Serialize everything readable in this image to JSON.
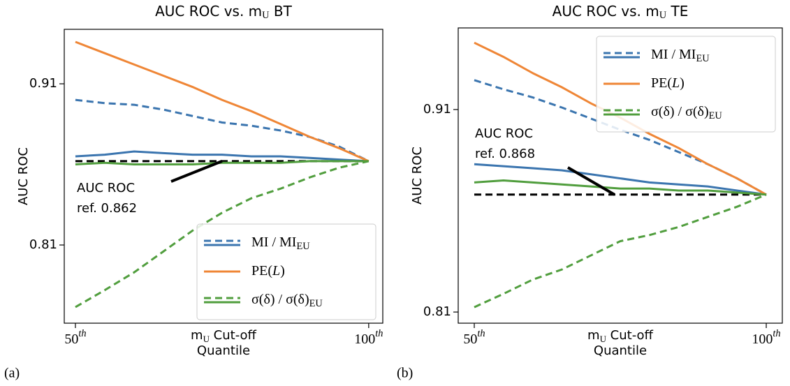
{
  "chart_data": [
    {
      "type": "line",
      "panel_label": "(a)",
      "title": [
        "AUC ROC vs. m",
        {
          "sub": "U"
        },
        " BT"
      ],
      "xlabel": [
        [
          "m",
          {
            "sub": "U"
          },
          " Cut-off"
        ],
        [
          "Quantile"
        ]
      ],
      "ylabel": "AUC ROC",
      "x": [
        50,
        55,
        60,
        65,
        70,
        75,
        80,
        85,
        90,
        95,
        100
      ],
      "xlim": [
        48.1,
        102.4
      ],
      "xticks": [
        {
          "value": 50,
          "label": [
            "50",
            {
              "sup": "th"
            }
          ]
        },
        {
          "value": 100,
          "label": [
            "100",
            {
              "sup": "th"
            }
          ]
        }
      ],
      "ylim": [
        0.7615,
        0.9438
      ],
      "yticks": [
        0.81,
        0.91
      ],
      "legend": "lower right",
      "series": [
        {
          "label": [
            "MI / MI",
            {
              "sub": "EU"
            }
          ],
          "lines": [
            {
              "color": "#3b75af",
              "dash": true,
              "values": [
                0.9,
                0.898,
                0.897,
                0.894,
                0.89,
                0.886,
                0.884,
                0.881,
                0.877,
                0.871,
                0.862
              ]
            },
            {
              "color": "#3b75af",
              "dash": false,
              "values": [
                0.865,
                0.866,
                0.868,
                0.867,
                0.866,
                0.866,
                0.865,
                0.865,
                0.864,
                0.863,
                0.862
              ]
            }
          ]
        },
        {
          "label": [
            "PE(",
            {
              "math": "L"
            },
            ")"
          ],
          "lines": [
            {
              "color": "#ef8636",
              "dash": false,
              "values": [
                0.936,
                0.929,
                0.922,
                0.915,
                0.908,
                0.9,
                0.893,
                0.885,
                0.877,
                0.87,
                0.862
              ]
            }
          ]
        },
        {
          "label": [
            "σ(δ) / σ(δ)",
            {
              "sub": "EU"
            }
          ],
          "lines": [
            {
              "color": "#519e3e",
              "dash": true,
              "values": [
                0.7715,
                0.782,
                0.793,
                0.806,
                0.819,
                0.83,
                0.839,
                0.845,
                0.852,
                0.858,
                0.862
              ]
            },
            {
              "color": "#519e3e",
              "dash": false,
              "values": [
                0.86,
                0.861,
                0.86,
                0.86,
                0.86,
                0.861,
                0.861,
                0.861,
                0.862,
                0.862,
                0.862
              ]
            }
          ]
        }
      ],
      "reference": {
        "value": 0.862,
        "color": "#000000",
        "label": [
          "AUC ROC",
          "ref. 0.862"
        ]
      }
    },
    {
      "type": "line",
      "panel_label": "(b)",
      "title": [
        "AUC ROC vs. m",
        {
          "sub": "U"
        },
        " TE"
      ],
      "xlabel": [
        [
          "m",
          {
            "sub": "U"
          },
          " Cut-off"
        ],
        [
          "Quantile"
        ]
      ],
      "ylabel": "AUC ROC",
      "x": [
        50,
        55,
        60,
        65,
        70,
        75,
        80,
        85,
        90,
        95,
        100
      ],
      "xlim": [
        47.25,
        102.75
      ],
      "xticks": [
        {
          "value": 50,
          "label": [
            "50",
            {
              "sup": "th"
            }
          ]
        },
        {
          "value": 100,
          "label": [
            "100",
            {
              "sup": "th"
            }
          ]
        }
      ],
      "ylim": [
        0.8045,
        0.9503
      ],
      "yticks": [
        0.81,
        0.91
      ],
      "legend": "upper right",
      "series": [
        {
          "label": [
            "MI / MI",
            {
              "sub": "EU"
            }
          ],
          "lines": [
            {
              "color": "#3b75af",
              "dash": true,
              "values": [
                0.9245,
                0.92,
                0.916,
                0.911,
                0.9055,
                0.9,
                0.895,
                0.889,
                0.883,
                0.876,
                0.868
              ]
            },
            {
              "color": "#3b75af",
              "dash": false,
              "values": [
                0.883,
                0.882,
                0.881,
                0.88,
                0.878,
                0.876,
                0.874,
                0.873,
                0.872,
                0.87,
                0.868
              ]
            }
          ]
        },
        {
          "label": [
            "PE(",
            {
              "math": "L"
            },
            ")"
          ],
          "lines": [
            {
              "color": "#ef8636",
              "dash": false,
              "values": [
                0.943,
                0.936,
                0.928,
                0.921,
                0.913,
                0.906,
                0.898,
                0.891,
                0.883,
                0.876,
                0.868
              ]
            }
          ]
        },
        {
          "label": [
            "σ(δ) / σ(δ)",
            {
              "sub": "EU"
            }
          ],
          "lines": [
            {
              "color": "#519e3e",
              "dash": true,
              "values": [
                0.8124,
                0.819,
                0.826,
                0.831,
                0.838,
                0.845,
                0.848,
                0.852,
                0.857,
                0.862,
                0.868
              ]
            },
            {
              "color": "#519e3e",
              "dash": false,
              "values": [
                0.874,
                0.875,
                0.874,
                0.873,
                0.872,
                0.871,
                0.871,
                0.87,
                0.87,
                0.869,
                0.868
              ]
            }
          ]
        }
      ],
      "reference": {
        "value": 0.868,
        "color": "#000000",
        "label": [
          "AUC ROC",
          "ref. 0.868"
        ]
      }
    }
  ]
}
